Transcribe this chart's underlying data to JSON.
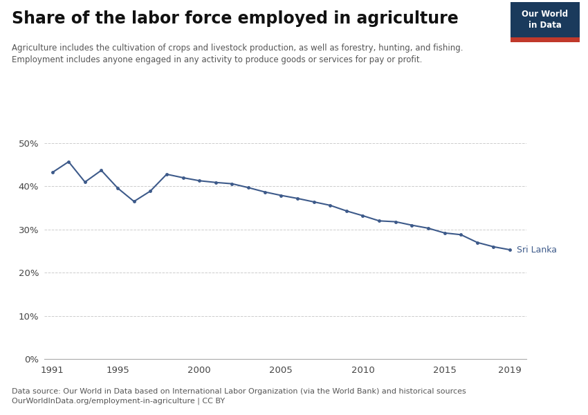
{
  "title": "Share of the labor force employed in agriculture",
  "subtitle_line1": "Agriculture includes the cultivation of crops and livestock production, as well as forestry, hunting, and fishing.",
  "subtitle_line2": "Employment includes anyone engaged in any activity to produce goods or services for pay or profit.",
  "source_line1": "Data source: Our World in Data based on International Labor Organization (via the World Bank) and historical sources",
  "source_line2": "OurWorldInData.org/employment-in-agriculture | CC BY",
  "line_color": "#3d5a8a",
  "label": "Sri Lanka",
  "years": [
    1991,
    1992,
    1993,
    1994,
    1995,
    1996,
    1997,
    1998,
    1999,
    2000,
    2001,
    2002,
    2003,
    2004,
    2005,
    2006,
    2007,
    2008,
    2009,
    2010,
    2011,
    2012,
    2013,
    2014,
    2015,
    2016,
    2017,
    2018,
    2019
  ],
  "values": [
    43.2,
    45.7,
    41.0,
    43.7,
    39.6,
    36.5,
    38.9,
    42.8,
    42.0,
    41.3,
    40.9,
    40.6,
    39.7,
    38.7,
    37.9,
    37.2,
    36.4,
    35.6,
    34.3,
    33.2,
    32.0,
    31.8,
    31.0,
    30.3,
    29.2,
    28.8,
    27.0,
    26.0,
    25.3
  ],
  "ylim": [
    0,
    50
  ],
  "yticks": [
    0,
    10,
    20,
    30,
    40,
    50
  ],
  "xlim": [
    1990.5,
    2020
  ],
  "xticks": [
    1991,
    1995,
    2000,
    2005,
    2010,
    2015,
    2019
  ],
  "background_color": "#ffffff",
  "grid_color": "#cccccc",
  "owid_box_color": "#1a3a5c",
  "owid_red": "#c0392b",
  "title_fontsize": 17,
  "subtitle_fontsize": 8.5,
  "source_fontsize": 8.0,
  "tick_fontsize": 9.5,
  "label_fontsize": 9
}
